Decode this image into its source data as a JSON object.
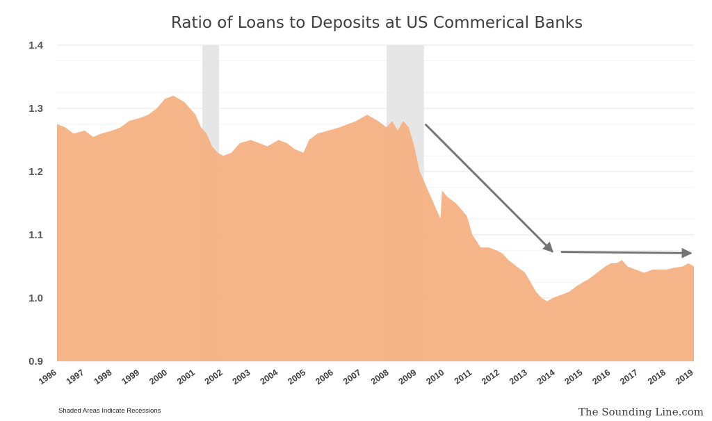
{
  "chart_data": {
    "type": "area",
    "title": "Ratio of Loans to Deposits at US Commerical Banks",
    "xlabel": "",
    "ylabel": "",
    "xlim": [
      1996,
      2019
    ],
    "ylim": [
      0.9,
      1.4
    ],
    "yticks": [
      "0.9",
      "1.0",
      "1.1",
      "1.2",
      "1.3",
      "1.4"
    ],
    "xticks": [
      "1996",
      "1997",
      "1998",
      "1999",
      "2000",
      "2001",
      "2002",
      "2003",
      "2004",
      "2005",
      "2006",
      "2007",
      "2008",
      "2009",
      "2010",
      "2011",
      "2012",
      "2013",
      "2014",
      "2015",
      "2016",
      "2017",
      "2018",
      "2019"
    ],
    "grid": true,
    "legend": "none",
    "series": [
      {
        "x": [
          1996.0,
          1996.3,
          1996.6,
          1997.0,
          1997.3,
          1997.6,
          1998.0,
          1998.3,
          1998.6,
          1999.0,
          1999.3,
          1999.6,
          1999.9,
          2000.2,
          2000.4,
          2000.6,
          2000.8,
          2001.0,
          2001.2,
          2001.4,
          2001.6,
          2001.8,
          2002.0,
          2002.3,
          2002.6,
          2003.0,
          2003.3,
          2003.6,
          2004.0,
          2004.3,
          2004.6,
          2004.9,
          2005.1,
          2005.4,
          2005.8,
          2006.2,
          2006.5,
          2006.8,
          2007.0,
          2007.2,
          2007.4,
          2007.6,
          2007.9,
          2008.1,
          2008.3,
          2008.5,
          2008.7,
          2008.9,
          2009.1,
          2009.3,
          2009.5,
          2009.7,
          2009.85,
          2009.9,
          2010.1,
          2010.4,
          2010.6,
          2010.8,
          2011.0,
          2011.3,
          2011.6,
          2011.9,
          2012.1,
          2012.3,
          2012.6,
          2012.9,
          2013.1,
          2013.3,
          2013.5,
          2013.7,
          2013.9,
          2014.2,
          2014.5,
          2014.8,
          2015.0,
          2015.2,
          2015.5,
          2015.8,
          2016.0,
          2016.2,
          2016.4,
          2016.6,
          2016.9,
          2017.2,
          2017.5,
          2017.8,
          2018.0,
          2018.3,
          2018.6,
          2018.8,
          2019.0
        ],
        "y": [
          1.275,
          1.27,
          1.26,
          1.265,
          1.255,
          1.26,
          1.265,
          1.27,
          1.28,
          1.285,
          1.29,
          1.3,
          1.315,
          1.32,
          1.315,
          1.31,
          1.3,
          1.29,
          1.27,
          1.26,
          1.24,
          1.23,
          1.225,
          1.23,
          1.245,
          1.25,
          1.245,
          1.24,
          1.25,
          1.245,
          1.235,
          1.23,
          1.25,
          1.26,
          1.265,
          1.27,
          1.275,
          1.28,
          1.285,
          1.29,
          1.285,
          1.28,
          1.27,
          1.28,
          1.265,
          1.28,
          1.27,
          1.24,
          1.2,
          1.18,
          1.16,
          1.14,
          1.125,
          1.17,
          1.16,
          1.15,
          1.14,
          1.13,
          1.1,
          1.08,
          1.08,
          1.075,
          1.07,
          1.06,
          1.05,
          1.04,
          1.025,
          1.01,
          1.0,
          0.995,
          1.0,
          1.005,
          1.01,
          1.02,
          1.025,
          1.03,
          1.04,
          1.05,
          1.055,
          1.055,
          1.06,
          1.05,
          1.045,
          1.04,
          1.045,
          1.045,
          1.045,
          1.048,
          1.05,
          1.055,
          1.05
        ]
      }
    ],
    "shaded_regions": [
      {
        "x0": 2001.25,
        "x1": 2001.85
      },
      {
        "x0": 2007.9,
        "x1": 2009.25
      }
    ],
    "arrows": [
      {
        "x0": 2009.3,
        "y0": 1.275,
        "x1": 2013.9,
        "y1": 1.073
      },
      {
        "x0": 2014.2,
        "y0": 1.073,
        "x1": 2018.9,
        "y1": 1.071
      }
    ],
    "colors": {
      "area": "#f4b183",
      "recession": "#e7e6e6",
      "grid": "#e6e6e6",
      "arrow": "#757575"
    },
    "footnote": "Shaded Areas Indicate Recessions",
    "source": "The Sounding Line.com"
  }
}
